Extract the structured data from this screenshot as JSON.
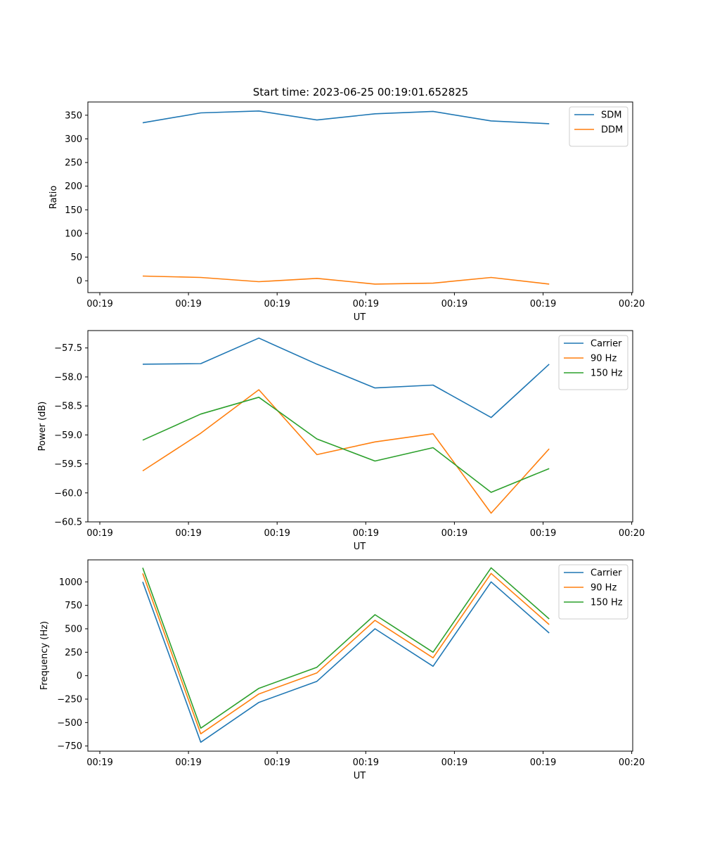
{
  "title": "Start time: 2023-06-25 00:19:01.652825",
  "chart_data": [
    {
      "type": "line",
      "xlabel": "UT",
      "ylabel": "Ratio",
      "x_tick_labels": [
        "00:19",
        "00:19",
        "00:19",
        "00:19",
        "00:19",
        "00:19",
        "00:20"
      ],
      "y_ticks": [
        0,
        50,
        100,
        150,
        200,
        250,
        300,
        350
      ],
      "ylim": [
        -25,
        378
      ],
      "legend_position": "top-right",
      "grid": false,
      "series": [
        {
          "name": "SDM",
          "color": "#1f77b4",
          "values": [
            334,
            355,
            359,
            340,
            353,
            358,
            338,
            332
          ]
        },
        {
          "name": "DDM",
          "color": "#ff7f0e",
          "values": [
            10,
            7,
            -2,
            5,
            -7,
            -5,
            7,
            -7
          ]
        }
      ]
    },
    {
      "type": "line",
      "xlabel": "UT",
      "ylabel": "Power (dB)",
      "x_tick_labels": [
        "00:19",
        "00:19",
        "00:19",
        "00:19",
        "00:19",
        "00:19",
        "00:20"
      ],
      "y_ticks": [
        -60.5,
        -60.0,
        -59.5,
        -59.0,
        -58.5,
        -58.0,
        -57.5
      ],
      "y_tick_labels": [
        "−60.5",
        "−60.0",
        "−59.5",
        "−59.0",
        "−58.5",
        "−58.0",
        "−57.5"
      ],
      "ylim": [
        -60.5,
        -57.2
      ],
      "legend_position": "top-right",
      "grid": false,
      "series": [
        {
          "name": "Carrier",
          "color": "#1f77b4",
          "values": [
            -57.78,
            -57.77,
            -57.33,
            -57.78,
            -58.19,
            -58.14,
            -58.7,
            -57.78
          ]
        },
        {
          "name": "90 Hz",
          "color": "#ff7f0e",
          "values": [
            -59.62,
            -58.97,
            -58.22,
            -59.34,
            -59.12,
            -58.98,
            -60.35,
            -59.24
          ]
        },
        {
          "name": "150 Hz",
          "color": "#2ca02c",
          "values": [
            -59.09,
            -58.64,
            -58.35,
            -59.07,
            -59.45,
            -59.22,
            -59.99,
            -59.58
          ]
        }
      ]
    },
    {
      "type": "line",
      "xlabel": "UT",
      "ylabel": "Frequency (Hz)",
      "x_tick_labels": [
        "00:19",
        "00:19",
        "00:19",
        "00:19",
        "00:19",
        "00:19",
        "00:20"
      ],
      "y_ticks": [
        -750,
        -500,
        -250,
        0,
        250,
        500,
        750,
        1000
      ],
      "y_tick_labels": [
        "−750",
        "−500",
        "−250",
        "0",
        "250",
        "500",
        "750",
        "1000"
      ],
      "ylim": [
        -805,
        1235
      ],
      "legend_position": "top-right",
      "grid": false,
      "series": [
        {
          "name": "Carrier",
          "color": "#1f77b4",
          "values": [
            1000,
            -710,
            -285,
            -60,
            500,
            100,
            1000,
            455
          ]
        },
        {
          "name": "90 Hz",
          "color": "#ff7f0e",
          "values": [
            1090,
            -620,
            -195,
            30,
            590,
            190,
            1090,
            545
          ]
        },
        {
          "name": "150 Hz",
          "color": "#2ca02c",
          "values": [
            1150,
            -560,
            -135,
            90,
            650,
            250,
            1150,
            605
          ]
        }
      ]
    }
  ]
}
